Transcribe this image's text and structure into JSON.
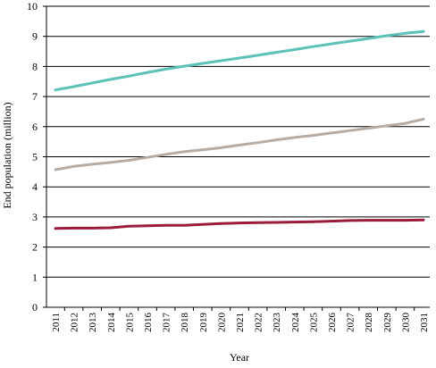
{
  "chart_data": {
    "type": "line",
    "title": "",
    "xlabel": "Year",
    "ylabel": "End population (million)",
    "ylim": [
      0,
      10
    ],
    "yticks": [
      0,
      1,
      2,
      3,
      4,
      5,
      6,
      7,
      8,
      9,
      10
    ],
    "grid": "horizontal",
    "legend": "none",
    "x": [
      "2011",
      "2012",
      "2013",
      "2014",
      "2015",
      "2016",
      "2017",
      "2018",
      "2019",
      "2020",
      "2021",
      "2022",
      "2023",
      "2024",
      "2025",
      "2026",
      "2027",
      "2028",
      "2029",
      "2030",
      "2031"
    ],
    "series": [
      {
        "color": "#5cc1b6",
        "values": [
          7.22,
          7.33,
          7.45,
          7.57,
          7.68,
          7.8,
          7.91,
          8.01,
          8.1,
          8.19,
          8.28,
          8.37,
          8.47,
          8.56,
          8.66,
          8.75,
          8.84,
          8.93,
          9.02,
          9.1,
          9.16
        ]
      },
      {
        "color": "#b7aca4",
        "values": [
          4.57,
          4.68,
          4.75,
          4.81,
          4.88,
          4.98,
          5.08,
          5.17,
          5.23,
          5.3,
          5.39,
          5.47,
          5.56,
          5.64,
          5.71,
          5.79,
          5.87,
          5.95,
          6.03,
          6.11,
          6.25
        ]
      },
      {
        "color": "#9b1b3c",
        "values": [
          2.62,
          2.63,
          2.63,
          2.64,
          2.69,
          2.71,
          2.72,
          2.72,
          2.75,
          2.78,
          2.8,
          2.81,
          2.82,
          2.83,
          2.84,
          2.86,
          2.88,
          2.89,
          2.89,
          2.89,
          2.9
        ]
      }
    ]
  }
}
